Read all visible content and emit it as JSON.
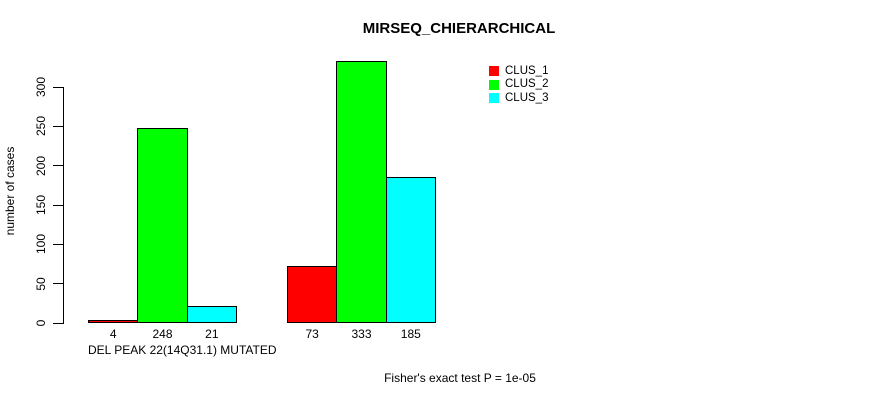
{
  "figure": {
    "background_color": "#ffffff",
    "text_color": "#000000"
  },
  "chart_data": {
    "type": "bar",
    "title": "MIRSEQ_CHIERARCHICAL",
    "ylabel": "number of cases",
    "footnote": "Fisher's exact test P = 1e-05",
    "ylim": [
      0,
      300
    ],
    "yticks": [
      0,
      50,
      100,
      150,
      200,
      250,
      300
    ],
    "grid": false,
    "legend_position": "top-right",
    "legend": [
      {
        "label": "CLUS_1",
        "color": "#ff0000"
      },
      {
        "label": "CLUS_2",
        "color": "#00ff00"
      },
      {
        "label": "CLUS_3",
        "color": "#00ffff"
      }
    ],
    "categories": [
      "DEL PEAK 22(14Q31.1) MUTATED",
      ""
    ],
    "series": [
      {
        "name": "CLUS_1",
        "values": [
          4,
          73
        ]
      },
      {
        "name": "CLUS_2",
        "values": [
          248,
          333
        ]
      },
      {
        "name": "CLUS_3",
        "values": [
          21,
          185
        ]
      }
    ]
  }
}
